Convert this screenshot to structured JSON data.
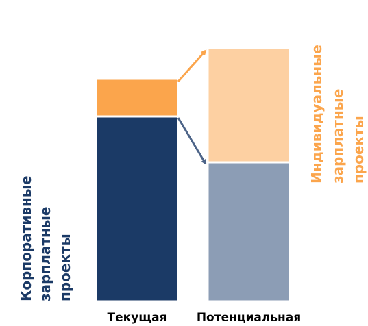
{
  "chart_data": {
    "type": "stacked_bar",
    "categories": [
      "Текущая",
      "Потенциальная"
    ],
    "series": [
      {
        "name": "Корпоративные зарплатные проекты",
        "colors": [
          "#1b3a66",
          "#8c9db5"
        ],
        "values": [
          270,
          203
        ]
      },
      {
        "name": "Индивидуальные зарплатные проекты",
        "colors": [
          "#fba54c",
          "#fdd0a2"
        ],
        "values": [
          55,
          167
        ]
      }
    ],
    "annotations": [
      {
        "lines": [
          "Корпоративные",
          "зарплатные",
          "проекты"
        ],
        "color": "#1b3a66"
      },
      {
        "lines": [
          "Индивидуальные",
          "зарплатные",
          "проекты"
        ],
        "color": "#fba54c"
      }
    ],
    "ylim": [
      0,
      372
    ]
  }
}
